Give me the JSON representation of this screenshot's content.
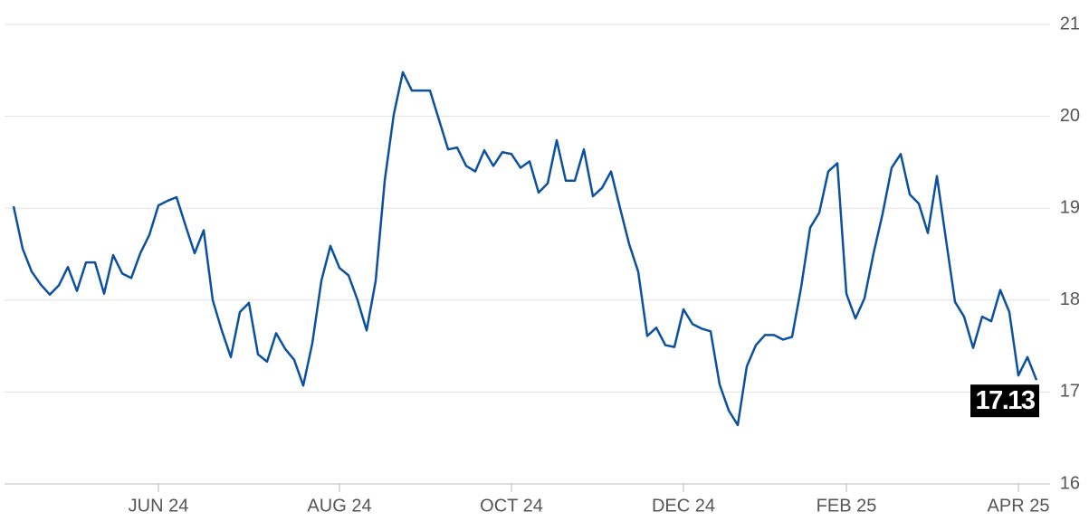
{
  "chart_data": {
    "type": "line",
    "categories": [
      null,
      null,
      null,
      null,
      null,
      null,
      null,
      null,
      null,
      null,
      null,
      null,
      null,
      null,
      null,
      null,
      "JUN 24",
      null,
      null,
      null,
      null,
      null,
      null,
      null,
      null,
      null,
      null,
      null,
      null,
      null,
      null,
      null,
      null,
      null,
      null,
      null,
      "AUG 24",
      null,
      null,
      null,
      null,
      null,
      null,
      null,
      null,
      null,
      null,
      null,
      null,
      null,
      null,
      null,
      null,
      null,
      null,
      "OCT 24",
      null,
      null,
      null,
      null,
      null,
      null,
      null,
      null,
      null,
      null,
      null,
      null,
      null,
      null,
      null,
      null,
      null,
      null,
      "DEC 24",
      null,
      null,
      null,
      null,
      null,
      null,
      null,
      null,
      null,
      null,
      null,
      null,
      null,
      null,
      null,
      null,
      null,
      "FEB 25",
      null,
      null,
      null,
      null,
      null,
      null,
      null,
      null,
      null,
      null,
      null,
      null,
      null,
      null,
      null,
      null,
      null,
      null,
      "APR 25",
      null,
      null
    ],
    "series": [
      {
        "color": "#0b51a0",
        "values": [
          19.02,
          18.56,
          18.31,
          18.17,
          18.06,
          18.16,
          18.36,
          18.1,
          18.41,
          18.41,
          18.07,
          18.49,
          18.29,
          18.24,
          18.51,
          18.71,
          19.03,
          19.08,
          19.12,
          18.81,
          18.51,
          18.76,
          18.0,
          17.67,
          17.38,
          17.87,
          17.97,
          17.41,
          17.33,
          17.64,
          17.47,
          17.35,
          17.07,
          17.53,
          18.21,
          18.59,
          18.35,
          18.27,
          18.0,
          17.67,
          18.21,
          19.3,
          20.02,
          20.48,
          20.28,
          20.28,
          20.28,
          19.96,
          19.64,
          19.66,
          19.46,
          19.4,
          19.63,
          19.46,
          19.61,
          19.59,
          19.44,
          19.51,
          19.17,
          19.27,
          19.74,
          19.3,
          19.3,
          19.64,
          19.13,
          19.22,
          19.4,
          19.0,
          18.61,
          18.31,
          17.61,
          17.7,
          17.51,
          17.49,
          17.9,
          17.74,
          17.69,
          17.66,
          17.08,
          16.8,
          16.64,
          17.28,
          17.51,
          17.62,
          17.62,
          17.57,
          17.6,
          18.14,
          18.79,
          18.95,
          19.4,
          19.49,
          18.07,
          17.8,
          18.02,
          18.51,
          18.94,
          19.44,
          19.59,
          19.15,
          19.05,
          18.73,
          19.35,
          18.66,
          17.98,
          17.82,
          17.48,
          17.82,
          17.77,
          18.11,
          17.87,
          17.18,
          17.38,
          17.13
        ]
      }
    ],
    "ylim": [
      16,
      21
    ],
    "yticks": [
      16,
      17,
      18,
      19,
      20,
      21
    ],
    "grid": true
  }
}
